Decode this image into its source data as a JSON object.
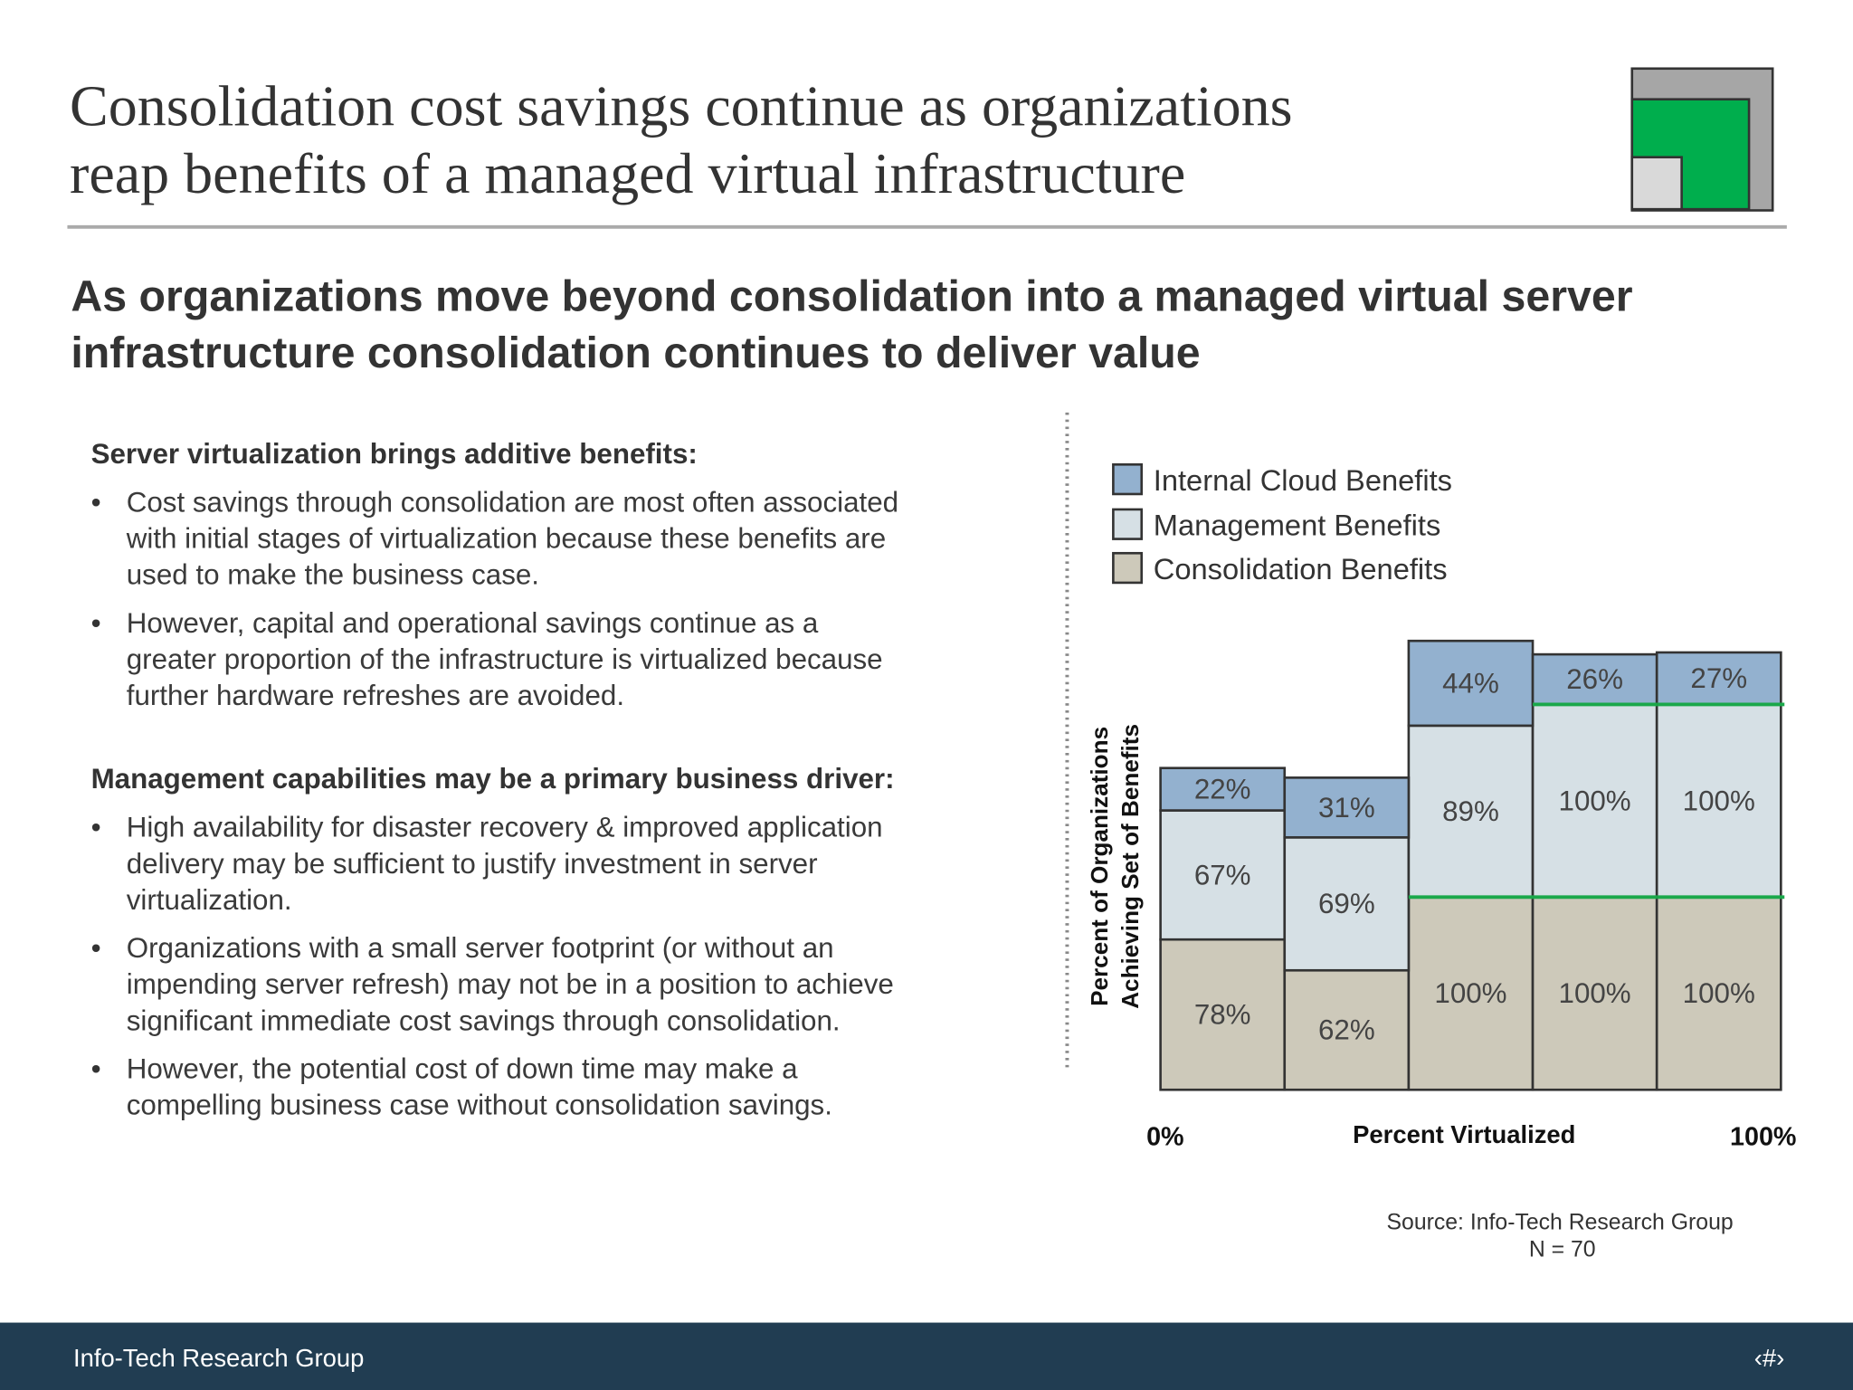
{
  "header": {
    "title_lines": [
      "Consolidation cost savings continue as organizations",
      "reap benefits of a managed virtual infrastructure"
    ],
    "subtitle_lines": [
      "As organizations move beyond consolidation into a managed virtual server",
      "infrastructure consolidation continues to deliver value"
    ]
  },
  "body": {
    "sections": [
      {
        "heading": "Server virtualization brings additive benefits:",
        "bullets": [
          [
            "Cost savings through consolidation are most often associated",
            "with initial stages of virtualization because these benefits are",
            "used to make the business case."
          ],
          [
            "However, capital and operational savings continue as a",
            "greater proportion of the infrastructure is virtualized because",
            "further hardware refreshes are avoided."
          ]
        ]
      },
      {
        "heading": "Management capabilities may be a primary business driver:",
        "bullets": [
          [
            "High availability for disaster recovery & improved application",
            "delivery may be sufficient to justify investment in server",
            "virtualization."
          ],
          [
            "Organizations with a small server footprint (or without an",
            "impending server refresh) may not be in a position to achieve",
            "significant immediate cost savings through consolidation."
          ],
          [
            "However, the potential cost of down time may make a",
            "compelling business case without consolidation savings."
          ]
        ]
      }
    ]
  },
  "chart_data": {
    "type": "stacked_bar",
    "y_label_lines": [
      "Percent of Organizations",
      "Achieving Set of Benefits"
    ],
    "x_axis": {
      "start_label": "0%",
      "title": "Percent Virtualized",
      "end_label": "100%"
    },
    "series": [
      {
        "name": "Consolidation Benefits",
        "color": "#cdc9ba",
        "values": [
          78,
          62,
          100,
          100,
          100
        ],
        "value_labels": [
          "78%",
          "62%",
          "100%",
          "100%",
          "100%"
        ]
      },
      {
        "name": "Management Benefits",
        "color": "#d6e0e5",
        "values": [
          67,
          69,
          89,
          100,
          100
        ],
        "value_labels": [
          "67%",
          "69%",
          "89%",
          "100%",
          "100%"
        ]
      },
      {
        "name": "Internal Cloud Benefits",
        "color": "#93b1cf",
        "values": [
          22,
          31,
          44,
          26,
          27
        ],
        "value_labels": [
          "22%",
          "31%",
          "44%",
          "26%",
          "27%"
        ]
      }
    ],
    "highlight_color": "#1aa84a",
    "source_lines": [
      "Source: Info-Tech Research Group",
      "N = 70"
    ]
  },
  "footer": {
    "left": "Info-Tech Research Group",
    "right": "‹#›"
  }
}
